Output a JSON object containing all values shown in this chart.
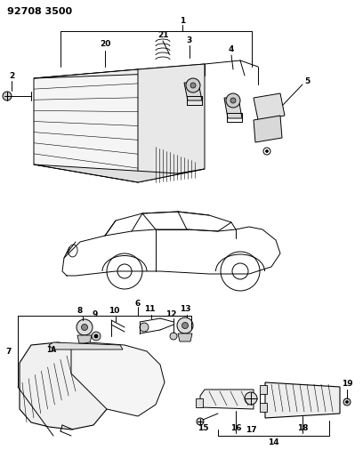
{
  "header": "92708 3500",
  "bg": "#ffffff",
  "lc": "#000000",
  "fig_w": 4.08,
  "fig_h": 5.33,
  "dpi": 100
}
